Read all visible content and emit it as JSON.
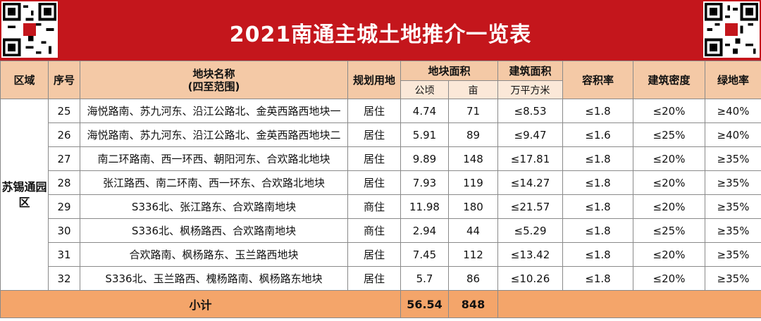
{
  "title": "2021南通主城土地推介一览表",
  "header": {
    "region": "区域",
    "seq": "序号",
    "name_line1": "地块名称",
    "name_line2": "(四至范围)",
    "use": "规划用地",
    "area": "地块面积",
    "area_ha": "公顷",
    "area_mu": "亩",
    "build": "建筑面积",
    "build_unit": "万平方米",
    "far": "容积率",
    "density": "建筑密度",
    "green": "绿地率"
  },
  "region_name": "苏锡通园区",
  "rows": [
    {
      "seq": "25",
      "name": "海悦路南、苏九河东、沿江公路北、金英西路西地块一",
      "use": "居住",
      "ha": "4.74",
      "mu": "71",
      "build": "≤8.53",
      "far": "≤1.8",
      "density": "≤20%",
      "green": "≥40%"
    },
    {
      "seq": "26",
      "name": "海悦路南、苏九河东、沿江公路北、金英西路西地块二",
      "use": "居住",
      "ha": "5.91",
      "mu": "89",
      "build": "≤9.47",
      "far": "≤1.6",
      "density": "≤25%",
      "green": "≥40%"
    },
    {
      "seq": "27",
      "name": "南二环路南、西一环西、朝阳河东、合欢路北地块",
      "use": "居住",
      "ha": "9.89",
      "mu": "148",
      "build": "≤17.81",
      "far": "≤1.8",
      "density": "≤20%",
      "green": "≥35%"
    },
    {
      "seq": "28",
      "name": "张江路西、南二环南、西一环东、合欢路北地块",
      "use": "居住",
      "ha": "7.93",
      "mu": "119",
      "build": "≤14.27",
      "far": "≤1.8",
      "density": "≤20%",
      "green": "≥35%"
    },
    {
      "seq": "29",
      "name": "S336北、张江路东、合欢路南地块",
      "use": "商住",
      "ha": "11.98",
      "mu": "180",
      "build": "≤21.57",
      "far": "≤1.8",
      "density": "≤20%",
      "green": "≥35%"
    },
    {
      "seq": "30",
      "name": "S336北、枫杨路西、合欢路南地块",
      "use": "商住",
      "ha": "2.94",
      "mu": "44",
      "build": "≤5.29",
      "far": "≤1.8",
      "density": "≤25%",
      "green": "≥35%"
    },
    {
      "seq": "31",
      "name": "合欢路南、枫杨路东、玉兰路西地块",
      "use": "居住",
      "ha": "7.45",
      "mu": "112",
      "build": "≤13.42",
      "far": "≤1.8",
      "density": "≤20%",
      "green": "≥35%"
    },
    {
      "seq": "32",
      "name": "S336北、玉兰路西、槐杨路南、枫杨路东地块",
      "use": "居住",
      "ha": "5.7",
      "mu": "86",
      "build": "≤10.26",
      "far": "≤1.8",
      "density": "≤20%",
      "green": "≥35%"
    }
  ],
  "subtotal": {
    "label": "小计",
    "ha": "56.54",
    "mu": "848"
  },
  "colors": {
    "banner": "#c4161c",
    "header": "#f4c9a6",
    "subtotal": "#f4a56a"
  }
}
